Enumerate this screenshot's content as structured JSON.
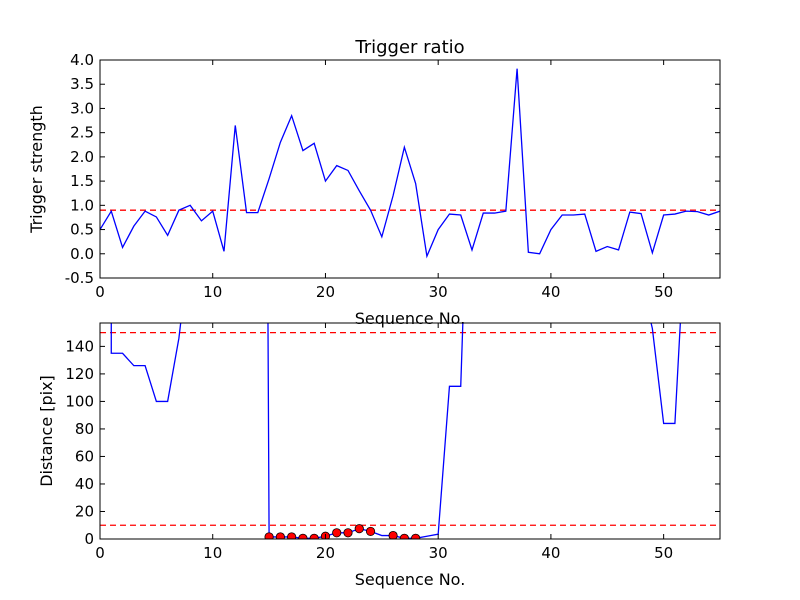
{
  "chart_data": [
    {
      "type": "line",
      "title": "Trigger ratio",
      "xlabel": "Sequence No.",
      "ylabel": "Trigger strength",
      "xlim": [
        0,
        55
      ],
      "ylim": [
        -0.5,
        4.0
      ],
      "xticks": [
        0,
        10,
        20,
        30,
        40,
        50
      ],
      "yticks": [
        -0.5,
        0.0,
        0.5,
        1.0,
        1.5,
        2.0,
        2.5,
        3.0,
        3.5,
        4.0
      ],
      "grid": false,
      "series": [
        {
          "color": "#0000ff",
          "style": "solid",
          "x": [
            0,
            1,
            2,
            3,
            4,
            5,
            6,
            7,
            8,
            9,
            10,
            11,
            12,
            13,
            14,
            15,
            16,
            17,
            18,
            19,
            20,
            21,
            22,
            23,
            24,
            25,
            26,
            27,
            28,
            29,
            30,
            31,
            32,
            33,
            34,
            35,
            36,
            37,
            38,
            39,
            40,
            41,
            42,
            43,
            44,
            45,
            46,
            47,
            48,
            49,
            50,
            51,
            52,
            53,
            54,
            55
          ],
          "y": [
            0.5,
            0.88,
            0.13,
            0.57,
            0.88,
            0.76,
            0.38,
            0.9,
            1.0,
            0.68,
            0.88,
            0.05,
            2.65,
            0.85,
            0.85,
            1.55,
            2.3,
            2.85,
            2.13,
            2.28,
            1.5,
            1.82,
            1.72,
            1.3,
            0.9,
            0.35,
            1.2,
            2.2,
            1.45,
            -0.05,
            0.5,
            0.82,
            0.8,
            0.08,
            0.84,
            0.84,
            0.88,
            3.82,
            0.03,
            0.0,
            0.5,
            0.8,
            0.8,
            0.82,
            0.05,
            0.15,
            0.08,
            0.86,
            0.83,
            0.02,
            0.8,
            0.82,
            0.88,
            0.87,
            0.8,
            0.88
          ]
        }
      ],
      "hlines": [
        {
          "y": 0.9,
          "color": "#ff0000",
          "style": "dashed"
        }
      ]
    },
    {
      "type": "line",
      "title": "",
      "xlabel": "Sequence No.",
      "ylabel": "Distance [pix]",
      "xlim": [
        0,
        55
      ],
      "ylim": [
        0,
        157
      ],
      "xticks": [
        0,
        10,
        20,
        30,
        40,
        50
      ],
      "yticks": [
        0,
        20,
        40,
        60,
        80,
        100,
        120,
        140
      ],
      "grid": false,
      "series": [
        {
          "color": "#0000ff",
          "style": "solid",
          "segments": [
            {
              "x": [
                1.0,
                1.0,
                2.0,
                3.0,
                4.0,
                5.0,
                6.0,
                7.0,
                7.2
              ],
              "y": [
                160,
                135,
                135,
                126,
                126,
                100,
                100,
                146,
                160
              ]
            },
            {
              "x": [
                14.9,
                15.0,
                16.0,
                17.0,
                18.0,
                19.0,
                20.0,
                21.0,
                22.0,
                23.0,
                24.0,
                25.0,
                26.0,
                27.0,
                28.0,
                29.0,
                30.0,
                31.0,
                32.0,
                32.2
              ],
              "y": [
                160,
                1.5,
                1.5,
                1.5,
                0.5,
                0.5,
                2.0,
                4.5,
                4.5,
                7.5,
                5.5,
                2.5,
                2.5,
                0.5,
                0.5,
                2.0,
                3.5,
                111,
                111,
                160
              ]
            },
            {
              "x": [
                48.8,
                49.0,
                50.0,
                51.0,
                51.5
              ],
              "y": [
                160,
                153,
                84,
                84,
                160
              ]
            }
          ]
        },
        {
          "type": "scatter",
          "color": "#ff0000",
          "marker": "circle",
          "x": [
            15,
            16,
            17,
            18,
            19,
            20,
            21,
            22,
            23,
            24,
            26,
            27,
            28
          ],
          "y": [
            1.5,
            1.5,
            1.5,
            0.5,
            0.5,
            2.0,
            4.5,
            4.5,
            7.5,
            5.5,
            2.5,
            0.5,
            0.5
          ]
        }
      ],
      "hlines": [
        {
          "y": 150,
          "color": "#ff0000",
          "style": "dashed"
        },
        {
          "y": 10,
          "color": "#ff0000",
          "style": "dashed"
        }
      ]
    }
  ]
}
